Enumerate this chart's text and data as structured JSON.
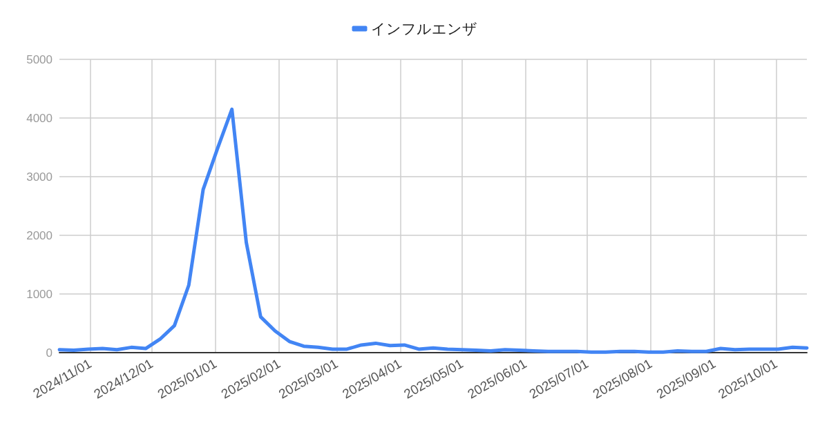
{
  "chart_data": {
    "type": "line",
    "x": [
      "2024-10-17",
      "2024-10-24",
      "2024-10-31",
      "2024-11-07",
      "2024-11-14",
      "2024-11-21",
      "2024-11-28",
      "2024-12-05",
      "2024-12-12",
      "2024-12-19",
      "2024-12-26",
      "2025-01-02",
      "2025-01-09",
      "2025-01-16",
      "2025-01-23",
      "2025-01-30",
      "2025-02-06",
      "2025-02-13",
      "2025-02-20",
      "2025-02-27",
      "2025-03-06",
      "2025-03-13",
      "2025-03-20",
      "2025-03-27",
      "2025-04-03",
      "2025-04-10",
      "2025-04-17",
      "2025-04-24",
      "2025-05-01",
      "2025-05-08",
      "2025-05-15",
      "2025-05-22",
      "2025-05-29",
      "2025-06-05",
      "2025-06-12",
      "2025-06-19",
      "2025-06-26",
      "2025-07-03",
      "2025-07-10",
      "2025-07-17",
      "2025-07-24",
      "2025-07-31",
      "2025-08-07",
      "2025-08-14",
      "2025-08-21",
      "2025-08-28",
      "2025-09-04",
      "2025-09-11",
      "2025-09-18",
      "2025-09-25",
      "2025-10-02",
      "2025-10-09",
      "2025-10-16"
    ],
    "series": [
      {
        "name": "インフルエンザ",
        "color": "#4285f4",
        "values": [
          50,
          40,
          60,
          70,
          50,
          90,
          70,
          230,
          460,
          1150,
          2780,
          3480,
          4150,
          1880,
          610,
          370,
          190,
          110,
          90,
          60,
          60,
          130,
          160,
          120,
          130,
          60,
          80,
          60,
          50,
          40,
          30,
          50,
          40,
          30,
          20,
          20,
          20,
          10,
          10,
          20,
          20,
          10,
          10,
          30,
          20,
          20,
          70,
          50,
          60,
          60,
          60,
          90,
          80
        ]
      }
    ],
    "xlim": [
      "2024-10-17",
      "2025-10-16"
    ],
    "xticks": [
      {
        "value": "2024-11-01",
        "label": "2024/11/01"
      },
      {
        "value": "2024-12-01",
        "label": "2024/12/01"
      },
      {
        "value": "2025-01-01",
        "label": "2025/01/01"
      },
      {
        "value": "2025-02-01",
        "label": "2025/02/01"
      },
      {
        "value": "2025-03-01",
        "label": "2025/03/01"
      },
      {
        "value": "2025-04-01",
        "label": "2025/04/01"
      },
      {
        "value": "2025-05-01",
        "label": "2025/05/01"
      },
      {
        "value": "2025-06-01",
        "label": "2025/06/01"
      },
      {
        "value": "2025-07-01",
        "label": "2025/07/01"
      },
      {
        "value": "2025-08-01",
        "label": "2025/08/01"
      },
      {
        "value": "2025-09-01",
        "label": "2025/09/01"
      },
      {
        "value": "2025-10-01",
        "label": "2025/10/01"
      }
    ],
    "ylim": [
      0,
      5000
    ],
    "yticks": [
      0,
      1000,
      2000,
      3000,
      4000,
      5000
    ],
    "grid": true,
    "legend": "top",
    "marker": "none",
    "line_style": "solid"
  }
}
